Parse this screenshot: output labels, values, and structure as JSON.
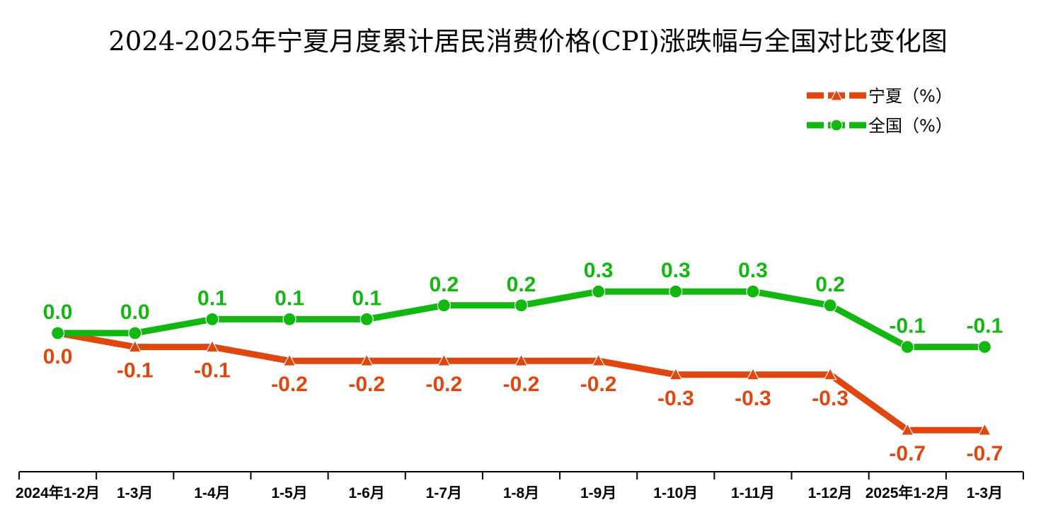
{
  "chart_data": {
    "type": "line",
    "title": "2024-2025年宁夏月度累计居民消费价格(CPI)涨跌幅与全国对比变化图",
    "categories": [
      "2024年1-2月",
      "1-3月",
      "1-4月",
      "1-5月",
      "1-6月",
      "1-7月",
      "1-8月",
      "1-9月",
      "1-10月",
      "1-11月",
      "1-12月",
      "2025年1-2月",
      "1-3月"
    ],
    "series": [
      {
        "name": "宁夏（%）",
        "color": "#e0470f",
        "marker": "triangle",
        "values": [
          0.0,
          -0.1,
          -0.1,
          -0.2,
          -0.2,
          -0.2,
          -0.2,
          -0.2,
          -0.3,
          -0.3,
          -0.3,
          -0.7,
          -0.7
        ],
        "labels": [
          "0.0",
          "-0.1",
          "-0.1",
          "-0.2",
          "-0.2",
          "-0.2",
          "-0.2",
          "-0.2",
          "-0.3",
          "-0.3",
          "-0.3",
          "-0.7",
          "-0.7"
        ]
      },
      {
        "name": "全国（%）",
        "color": "#12b70f",
        "marker": "circle",
        "values": [
          0.0,
          0.0,
          0.1,
          0.1,
          0.1,
          0.2,
          0.2,
          0.3,
          0.3,
          0.3,
          0.2,
          -0.1,
          -0.1
        ],
        "labels": [
          "0.0",
          "0.0",
          "0.1",
          "0.1",
          "0.1",
          "0.2",
          "0.2",
          "0.3",
          "0.3",
          "0.3",
          "0.2",
          "-0.1",
          "-0.1"
        ]
      }
    ],
    "legend_position": "top-right",
    "grid": false
  }
}
